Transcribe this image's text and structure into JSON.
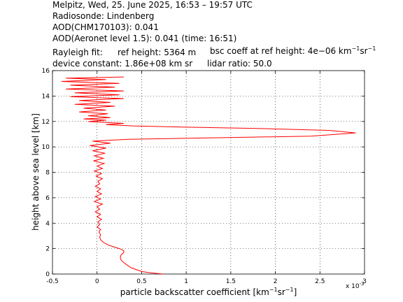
{
  "header": {
    "line1": "Melpitz, Wed, 25. June 2025, 16:53 – 19:57 UTC",
    "line2": "Radiosonde: Lindenberg",
    "line3": "AOD(CHM170103): 0.041",
    "line4": "AOD(Aeronet level 1.5): 0.041   (time: 16:51)",
    "rayleigh_label": "Rayleigh fit:",
    "ref_height": "ref height: 5364 m",
    "bsc_coeff_prefix": "bsc coeff at ref height: 4e−06 km",
    "device_constant": "device constant: 1.86e+08 km sr",
    "lidar_ratio": "lidar ratio: 50.0"
  },
  "chart_data": {
    "type": "line",
    "xlabel_main": "particle backscatter coefficient [km",
    "ylabel": "height above sea level [km]",
    "x_multiplier": "x 10",
    "x_multiplier_exp": "-3",
    "xlim": [
      -0.5,
      3
    ],
    "ylim": [
      0,
      16
    ],
    "x_ticks": [
      -0.5,
      0,
      0.5,
      1,
      1.5,
      2,
      2.5,
      3
    ],
    "x_tick_labels": [
      "-0.5",
      "0",
      "0.5",
      "1",
      "1.5",
      "2",
      "2.5",
      "3"
    ],
    "y_ticks": [
      0,
      2,
      4,
      6,
      8,
      10,
      12,
      14,
      16
    ],
    "y_tick_labels": [
      "0",
      "2",
      "4",
      "6",
      "8",
      "10",
      "12",
      "14",
      "16"
    ],
    "grid": "dotted",
    "color": "#ff0000",
    "series": [
      {
        "values_note": "",
        "points": [
          [
            0.74,
            0.0
          ],
          [
            0.6,
            0.1
          ],
          [
            0.5,
            0.2
          ],
          [
            0.44,
            0.35
          ],
          [
            0.38,
            0.5
          ],
          [
            0.34,
            0.7
          ],
          [
            0.3,
            0.9
          ],
          [
            0.27,
            1.1
          ],
          [
            0.26,
            1.3
          ],
          [
            0.27,
            1.5
          ],
          [
            0.3,
            1.7
          ],
          [
            0.3,
            1.85
          ],
          [
            0.25,
            2.0
          ],
          [
            0.18,
            2.15
          ],
          [
            0.12,
            2.3
          ],
          [
            0.07,
            2.5
          ],
          [
            0.04,
            2.7
          ],
          [
            0.03,
            2.9
          ],
          [
            0.04,
            3.1
          ],
          [
            0.02,
            3.3
          ],
          [
            0.04,
            3.5
          ],
          [
            0.0,
            3.7
          ],
          [
            0.03,
            3.9
          ],
          [
            0.01,
            4.1
          ],
          [
            0.05,
            4.3
          ],
          [
            0.0,
            4.5
          ],
          [
            0.04,
            4.7
          ],
          [
            -0.02,
            4.9
          ],
          [
            0.03,
            5.1
          ],
          [
            0.0,
            5.3
          ],
          [
            0.06,
            5.5
          ],
          [
            -0.03,
            5.7
          ],
          [
            0.04,
            5.9
          ],
          [
            -0.02,
            6.1
          ],
          [
            0.05,
            6.3
          ],
          [
            0.0,
            6.5
          ],
          [
            0.04,
            6.7
          ],
          [
            -0.02,
            6.9
          ],
          [
            0.03,
            7.1
          ],
          [
            0.01,
            7.3
          ],
          [
            0.06,
            7.5
          ],
          [
            -0.01,
            7.7
          ],
          [
            0.05,
            7.9
          ],
          [
            -0.03,
            8.1
          ],
          [
            0.06,
            8.3
          ],
          [
            0.0,
            8.5
          ],
          [
            0.08,
            8.7
          ],
          [
            -0.04,
            8.9
          ],
          [
            0.07,
            9.1
          ],
          [
            -0.03,
            9.3
          ],
          [
            0.09,
            9.5
          ],
          [
            -0.05,
            9.7
          ],
          [
            0.1,
            9.9
          ],
          [
            -0.08,
            10.1
          ],
          [
            0.15,
            10.3
          ],
          [
            -0.05,
            10.45
          ],
          [
            0.35,
            10.6
          ],
          [
            1.2,
            10.7
          ],
          [
            2.4,
            10.85
          ],
          [
            2.9,
            11.1
          ],
          [
            2.6,
            11.3
          ],
          [
            1.8,
            11.45
          ],
          [
            1.0,
            11.55
          ],
          [
            0.4,
            11.65
          ],
          [
            0.1,
            11.75
          ],
          [
            0.3,
            11.85
          ],
          [
            -0.1,
            12.0
          ],
          [
            0.1,
            12.1
          ],
          [
            -0.15,
            12.2
          ],
          [
            0.15,
            12.3
          ],
          [
            -0.1,
            12.45
          ],
          [
            0.12,
            12.6
          ],
          [
            -0.2,
            12.75
          ],
          [
            0.1,
            12.9
          ],
          [
            -0.15,
            13.05
          ],
          [
            0.2,
            13.2
          ],
          [
            -0.25,
            13.35
          ],
          [
            0.15,
            13.5
          ],
          [
            -0.2,
            13.65
          ],
          [
            0.3,
            13.8
          ],
          [
            -0.3,
            13.95
          ],
          [
            0.25,
            14.1
          ],
          [
            -0.25,
            14.25
          ],
          [
            0.3,
            14.4
          ],
          [
            -0.35,
            14.55
          ],
          [
            0.2,
            14.7
          ],
          [
            -0.3,
            14.85
          ],
          [
            0.25,
            15.0
          ],
          [
            -0.4,
            15.15
          ],
          [
            0.1,
            15.3
          ],
          [
            -0.35,
            15.4
          ],
          [
            0.3,
            15.5
          ]
        ]
      }
    ]
  }
}
